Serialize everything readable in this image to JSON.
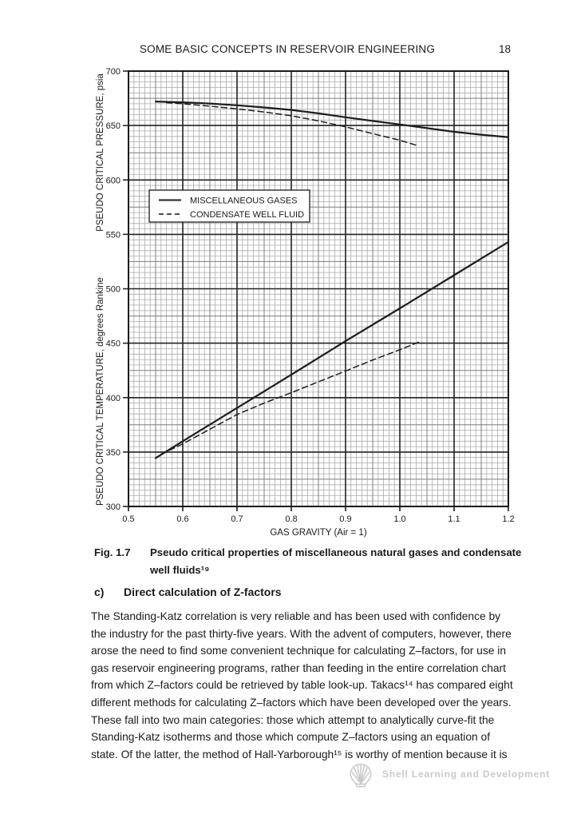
{
  "header": {
    "title": "SOME BASIC CONCEPTS IN RESERVOIR ENGINEERING",
    "page_number": "18"
  },
  "figure": {
    "caption_label": "Fig. 1.7",
    "caption_line1": "Pseudo critical properties of miscellaneous natural gases and condensate",
    "caption_line2": "well fluids¹⁹"
  },
  "section": {
    "label": "c)",
    "title": "Direct calculation of Z-factors"
  },
  "paragraph_lines": [
    "The Standing-Katz correlation is very reliable and has been used with confidence by",
    "the industry for the past thirty-five years. With the advent of computers, however, there",
    "arose the need to find some convenient technique for calculating Z–factors, for use in",
    "gas reservoir engineering programs, rather than feeding in the entire correlation chart",
    "from which Z–factors could be retrieved by table look-up. Takacs¹⁴ has compared eight",
    "different methods for calculating Z–factors which have been developed over the years.",
    "These fall into two main categories: those which attempt to analytically curve-fit the",
    "Standing-Katz isotherms and those which compute Z–factors using an equation of",
    "state. Of the latter, the method of Hall-Yarborough¹⁵ is worthy of mention because it is"
  ],
  "footer": {
    "brand": "Shell Learning and Development",
    "logo_color": "#c9c9c9"
  },
  "chart_data": {
    "type": "line",
    "title": "Pseudo critical properties of miscellaneous natural gases and condensate well fluids",
    "x_axis": {
      "label": "GAS GRAVITY (Air = 1)",
      "min": 0.5,
      "max": 1.2,
      "ticks": [
        0.5,
        0.6,
        0.7,
        0.8,
        0.9,
        1.0,
        1.1,
        1.2
      ]
    },
    "y_axis": {
      "label_top": "PSEUDO CRITICAL PRESSURE, psia",
      "label_bottom": "PSEUDO CRITICAL TEMPERATURE, degrees Rankine",
      "min": 300,
      "max": 700,
      "ticks": [
        300,
        350,
        400,
        450,
        500,
        550,
        600,
        650,
        700
      ]
    },
    "grid": {
      "minor_step_x": 0.01,
      "mid_step_x": 0.05,
      "major_step_x": 0.1,
      "minor_step_y": 5,
      "mid_step_y": 25,
      "major_step_y": 50,
      "visible": true
    },
    "legend": {
      "position": "upper-left-inside",
      "items": [
        {
          "name": "MISCELLANEOUS GASES",
          "style": "solid"
        },
        {
          "name": "CONDENSATE WELL FLUID",
          "style": "dashed"
        }
      ]
    },
    "series": [
      {
        "id": "pressure-miscellaneous-gases",
        "name": "MISCELLANEOUS GASES (pseudo critical pressure, psia)",
        "style": "solid",
        "points": [
          [
            0.55,
            672
          ],
          [
            0.6,
            671.3
          ],
          [
            0.65,
            670.2
          ],
          [
            0.7,
            668.6
          ],
          [
            0.75,
            666.6
          ],
          [
            0.8,
            664.3
          ],
          [
            0.85,
            661.2
          ],
          [
            0.9,
            657.6
          ],
          [
            0.95,
            654.2
          ],
          [
            1.0,
            651
          ],
          [
            1.05,
            647.6
          ],
          [
            1.1,
            644.2
          ],
          [
            1.15,
            641.6
          ],
          [
            1.2,
            639.3
          ]
        ]
      },
      {
        "id": "pressure-condensate-well-fluid",
        "name": "CONDENSATE WELL FLUID (pseudo critical pressure, psia)",
        "style": "dashed",
        "points": [
          [
            0.57,
            671
          ],
          [
            0.6,
            670
          ],
          [
            0.65,
            667.8
          ],
          [
            0.7,
            665.3
          ],
          [
            0.75,
            662.4
          ],
          [
            0.8,
            659
          ],
          [
            0.85,
            654.3
          ],
          [
            0.9,
            648.8
          ],
          [
            0.95,
            642.5
          ],
          [
            1.0,
            636.5
          ],
          [
            1.03,
            632
          ]
        ]
      },
      {
        "id": "temperature-miscellaneous-gases",
        "name": "MISCELLANEOUS GASES (pseudo critical temperature, degrees Rankine)",
        "style": "solid",
        "points": [
          [
            0.55,
            344.5
          ],
          [
            0.6,
            360
          ],
          [
            0.7,
            390.5
          ],
          [
            0.8,
            421
          ],
          [
            0.9,
            452
          ],
          [
            1.0,
            482
          ],
          [
            1.1,
            512.5
          ],
          [
            1.2,
            543
          ]
        ]
      },
      {
        "id": "temperature-condensate-well-fluid",
        "name": "CONDENSATE WELL FLUID (pseudo critical temperature, degrees Rankine)",
        "style": "dashed",
        "points": [
          [
            0.56,
            348
          ],
          [
            0.6,
            357.5
          ],
          [
            0.65,
            371
          ],
          [
            0.7,
            384.5
          ],
          [
            0.75,
            395
          ],
          [
            0.8,
            404.5
          ],
          [
            0.85,
            414.5
          ],
          [
            0.9,
            424.5
          ],
          [
            0.95,
            434.5
          ],
          [
            1.0,
            444
          ],
          [
            1.04,
            452
          ]
        ]
      }
    ]
  }
}
